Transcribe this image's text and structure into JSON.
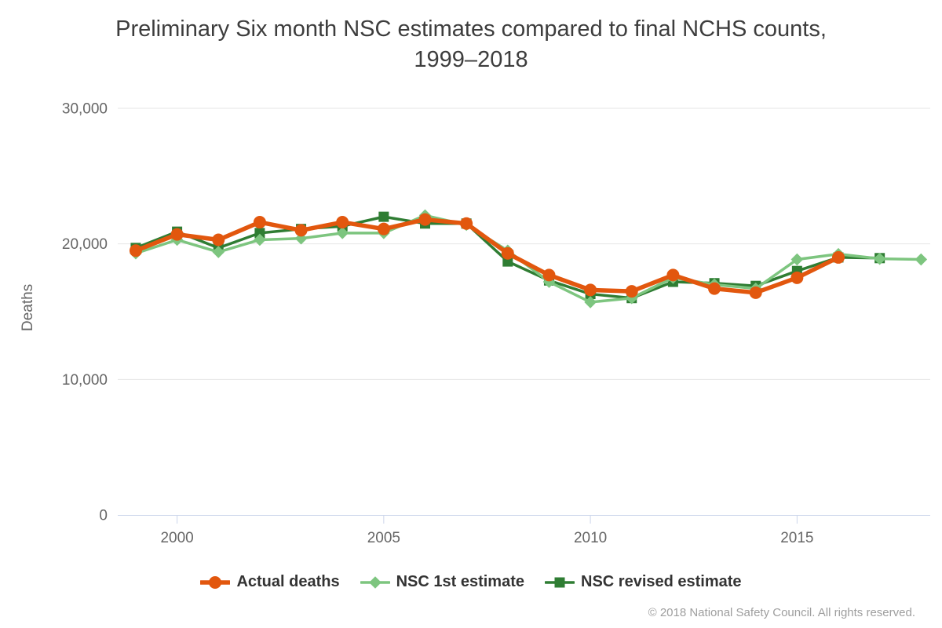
{
  "title": "Preliminary Six month NSC estimates compared to final NCHS counts, 1999–2018",
  "credits": "© 2018 National Safety Council. All rights reserved.",
  "chart_data": {
    "type": "line",
    "title": "Preliminary Six month NSC estimates compared to final NCHS counts, 1999–2018",
    "xlabel": "",
    "ylabel": "Deaths",
    "ylim": [
      0,
      30000
    ],
    "xlim": [
      1999,
      2018
    ],
    "grid": true,
    "legend_position": "bottom-center",
    "yticks": {
      "values": [
        0,
        10000,
        20000,
        30000
      ],
      "labels": [
        "0",
        "10,000",
        "20,000",
        "30,000"
      ]
    },
    "xticks": {
      "values": [
        2000,
        2005,
        2010,
        2015
      ],
      "labels": [
        "2000",
        "2005",
        "2010",
        "2015"
      ]
    },
    "years": [
      1999,
      2000,
      2001,
      2002,
      2003,
      2004,
      2005,
      2006,
      2007,
      2008,
      2009,
      2010,
      2011,
      2012,
      2013,
      2014,
      2015,
      2016,
      2017,
      2018
    ],
    "series": [
      {
        "name": "Actual deaths",
        "marker": "circle",
        "color": "#e2570e",
        "line_width": 5.5,
        "values": [
          19500,
          20700,
          20300,
          21600,
          21000,
          21600,
          21100,
          21800,
          21500,
          19300,
          17700,
          16600,
          16500,
          17700,
          16700,
          16400,
          17500,
          19000,
          null,
          null
        ]
      },
      {
        "name": "NSC 1st estimate",
        "marker": "diamond",
        "color": "#7dc57f",
        "line_width": 3.5,
        "values": [
          19300,
          20300,
          19400,
          20300,
          20400,
          20800,
          20800,
          22100,
          21400,
          19500,
          17200,
          15700,
          16000,
          17500,
          17000,
          16700,
          18850,
          19250,
          18900,
          18850
        ]
      },
      {
        "name": "NSC revised estimate",
        "marker": "square",
        "color": "#2f7d33",
        "line_width": 3.5,
        "values": [
          19700,
          20900,
          19700,
          20800,
          21100,
          21300,
          22000,
          21500,
          21500,
          18700,
          17300,
          16300,
          16000,
          17200,
          17100,
          16900,
          18000,
          19000,
          18950,
          null
        ]
      }
    ],
    "colors": {
      "grid_line": "#e6e6e6",
      "axis_line": "#ccd6eb",
      "tick_label": "#666666",
      "title_text": "#3d3d3d",
      "legend_text": "#333333",
      "credits_text": "#9e9e9e",
      "background": "#ffffff"
    }
  }
}
